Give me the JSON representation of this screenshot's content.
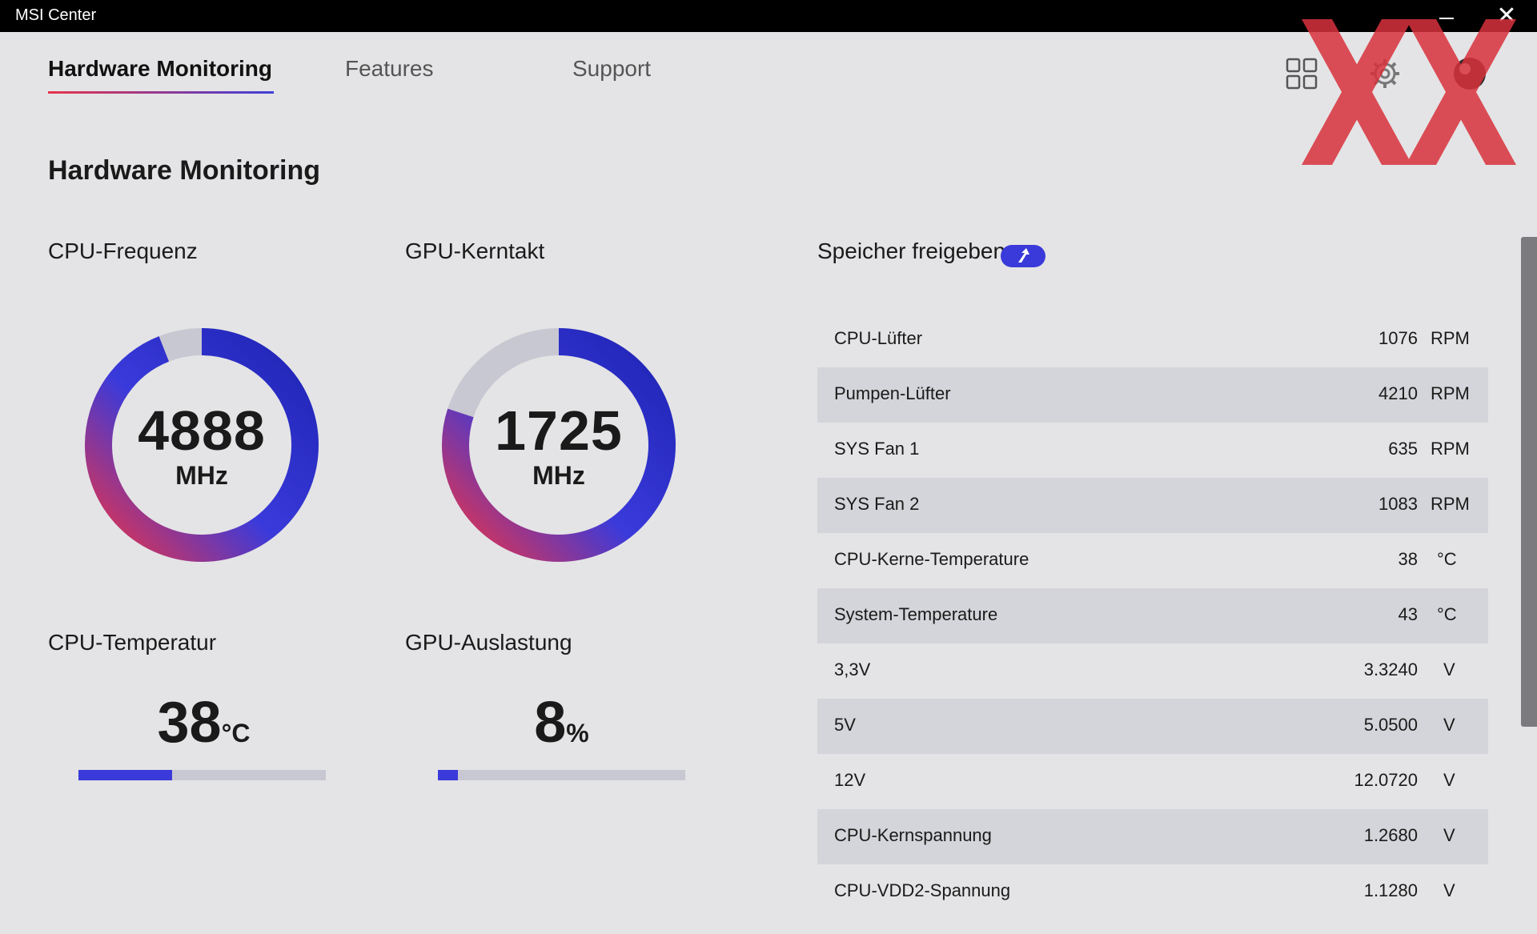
{
  "window": {
    "title": "MSI Center",
    "minimize_label": "",
    "close_label": "✕"
  },
  "tabs": [
    {
      "label": "Hardware Monitoring",
      "active": true
    },
    {
      "label": "Features",
      "active": false
    },
    {
      "label": "Support",
      "active": false
    }
  ],
  "top_icons": [
    "grid-icon",
    "gear-icon",
    "profile-icon"
  ],
  "page_title": "Hardware Monitoring",
  "widgets": {
    "cpu_freq": {
      "label": "CPU-Frequenz",
      "value": "4888",
      "unit": "MHz",
      "fraction": 0.94
    },
    "gpu_clock": {
      "label": "GPU-Kerntakt",
      "value": "1725",
      "unit": "MHz",
      "fraction": 0.8
    },
    "cpu_temp": {
      "label": "CPU-Temperatur",
      "value": "38",
      "unit": "°C",
      "fraction": 0.38
    },
    "gpu_load": {
      "label": "GPU-Auslastung",
      "value": "8",
      "unit": "%",
      "fraction": 0.08
    }
  },
  "release": {
    "label": "Speicher freigeben"
  },
  "sensors": [
    {
      "name": "CPU-Lüfter",
      "value": "1076",
      "unit": "RPM"
    },
    {
      "name": "Pumpen-Lüfter",
      "value": "4210",
      "unit": "RPM"
    },
    {
      "name": "SYS Fan 1",
      "value": "635",
      "unit": "RPM"
    },
    {
      "name": "SYS Fan 2",
      "value": "1083",
      "unit": "RPM"
    },
    {
      "name": "CPU-Kerne-Temperature",
      "value": "38",
      "unit": "°C"
    },
    {
      "name": "System-Temperature",
      "value": "43",
      "unit": "°C"
    },
    {
      "name": "3,3V",
      "value": "3.3240",
      "unit": "V"
    },
    {
      "name": "5V",
      "value": "5.0500",
      "unit": "V"
    },
    {
      "name": "12V",
      "value": "12.0720",
      "unit": "V"
    },
    {
      "name": "CPU-Kernspannung",
      "value": "1.2680",
      "unit": "V"
    },
    {
      "name": "CPU-VDD2-Spannung",
      "value": "1.1280",
      "unit": "V"
    }
  ],
  "colors": {
    "accent_blue": "#3a3adb",
    "accent_red": "#e8334a",
    "track_gray": "#c8c8d2",
    "logo_red": "#d9323c"
  }
}
